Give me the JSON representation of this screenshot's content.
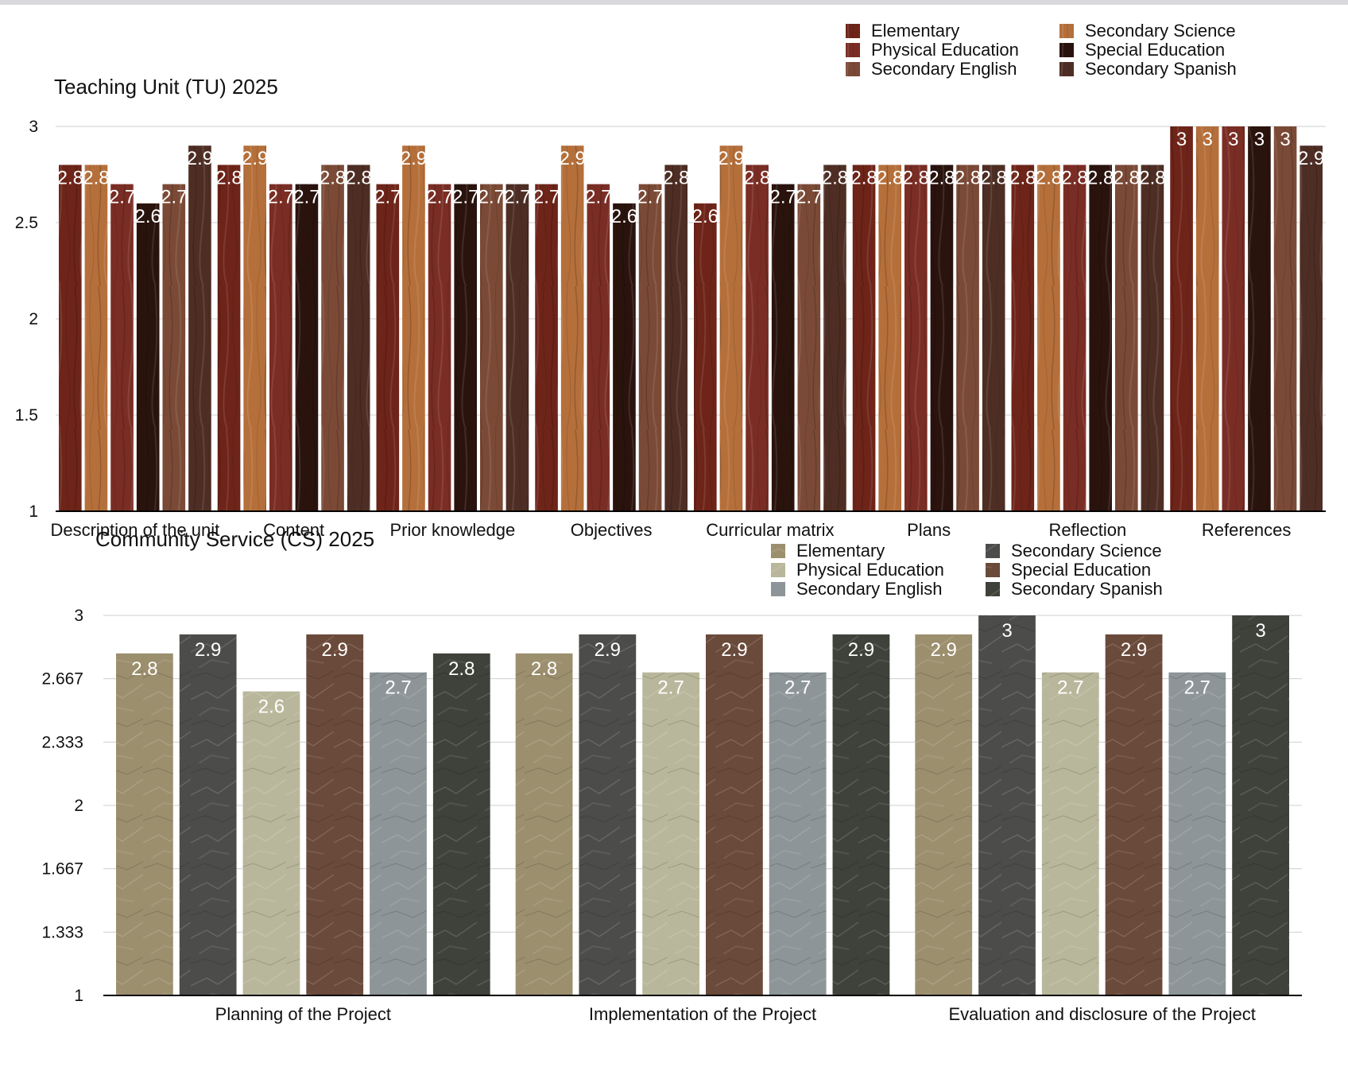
{
  "chart_data": [
    {
      "type": "bar",
      "title": "Teaching Unit (TU) 2025",
      "xlabel": "",
      "ylabel": "",
      "ylim": [
        1,
        3
      ],
      "yticks": [
        "1",
        "1.5",
        "2",
        "2.5",
        "3"
      ],
      "legend_position": "top-right",
      "grid": true,
      "categories": [
        "Description of the unit",
        "Content",
        "Prior knowledge",
        "Objectives",
        "Curricular matrix",
        "Plans",
        "Reflection",
        "References"
      ],
      "series": [
        {
          "name": "Elementary",
          "color": "#6e2418",
          "values": [
            2.8,
            2.8,
            2.7,
            2.7,
            2.6,
            2.8,
            2.8,
            3
          ]
        },
        {
          "name": "Secondary Science",
          "color": "#b56f3a",
          "values": [
            2.8,
            2.9,
            2.9,
            2.9,
            2.9,
            2.8,
            2.8,
            3
          ]
        },
        {
          "name": "Physical Education",
          "color": "#7a2d24",
          "values": [
            2.7,
            2.7,
            2.7,
            2.7,
            2.8,
            2.8,
            2.8,
            3
          ]
        },
        {
          "name": "Special Education",
          "color": "#2a130d",
          "values": [
            2.6,
            2.7,
            2.7,
            2.6,
            2.7,
            2.8,
            2.8,
            3
          ]
        },
        {
          "name": "Secondary English",
          "color": "#7b4a36",
          "values": [
            2.7,
            2.8,
            2.7,
            2.7,
            2.7,
            2.8,
            2.8,
            3
          ]
        },
        {
          "name": "Secondary Spanish",
          "color": "#4e2e24",
          "values": [
            2.9,
            2.8,
            2.7,
            2.8,
            2.8,
            2.8,
            2.8,
            2.9
          ]
        }
      ]
    },
    {
      "type": "bar",
      "title": "Community Service (CS) 2025",
      "xlabel": "",
      "ylabel": "",
      "ylim": [
        1,
        3
      ],
      "yticks": [
        "1",
        "1.333",
        "1.667",
        "2",
        "2.333",
        "2.667",
        "3"
      ],
      "legend_position": "top-right",
      "grid": true,
      "categories": [
        "Planning of the Project",
        "Implementation of the Project",
        "Evaluation and disclosure of the Project"
      ],
      "series": [
        {
          "name": "Elementary",
          "color": "#9c8f6e",
          "values": [
            2.8,
            2.8,
            2.9
          ]
        },
        {
          "name": "Secondary Science",
          "color": "#4c4c4b",
          "values": [
            2.9,
            2.9,
            3
          ]
        },
        {
          "name": "Physical Education",
          "color": "#b9b79b",
          "values": [
            2.6,
            2.7,
            2.7
          ]
        },
        {
          "name": "Special Education",
          "color": "#6a4a3a",
          "values": [
            2.9,
            2.9,
            2.9
          ]
        },
        {
          "name": "Secondary English",
          "color": "#8d9598",
          "values": [
            2.7,
            2.7,
            2.7
          ]
        },
        {
          "name": "Secondary Spanish",
          "color": "#3e423a",
          "values": [
            2.8,
            2.9,
            3
          ]
        }
      ]
    }
  ]
}
